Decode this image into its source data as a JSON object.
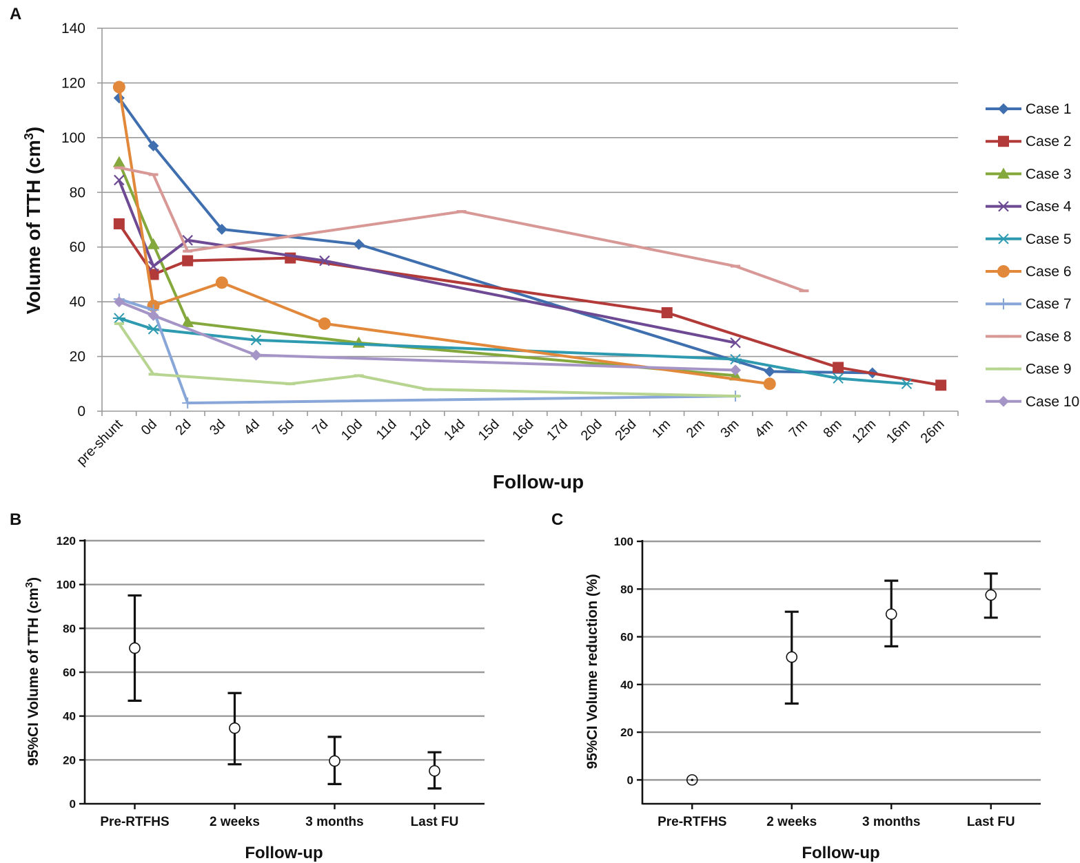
{
  "chart_data": [
    {
      "panel": "A",
      "type": "line",
      "title": "",
      "xlabel": "Follow-up",
      "ylabel_main": "Volume of TTH (cm",
      "ylabel_sup": "3",
      "ylabel_close": ")",
      "ylim": [
        0,
        140
      ],
      "yticks": [
        0,
        20,
        40,
        60,
        80,
        100,
        120,
        140
      ],
      "grid": true,
      "legend_position": "right",
      "categories": [
        "pre-shunt",
        "0d",
        "2d",
        "3d",
        "4d",
        "5d",
        "7d",
        "10d",
        "11d",
        "12d",
        "14d",
        "15d",
        "16d",
        "17d",
        "20d",
        "25d",
        "1m",
        "2m",
        "3m",
        "4m",
        "7m",
        "8m",
        "12m",
        "16m",
        "26m"
      ],
      "series": [
        {
          "name": "Case 1",
          "color": "#3f6faf",
          "marker": "diamond",
          "points": [
            [
              0,
              114.5
            ],
            [
              1,
              97
            ],
            [
              3,
              66.5
            ],
            [
              7,
              61
            ],
            [
              19,
              14.5
            ],
            [
              22,
              14
            ]
          ]
        },
        {
          "name": "Case 2",
          "color": "#b23a38",
          "marker": "square",
          "points": [
            [
              0,
              68.5
            ],
            [
              1,
              50
            ],
            [
              2,
              55
            ],
            [
              5,
              56
            ],
            [
              16,
              36
            ],
            [
              21,
              16
            ],
            [
              24,
              9.5
            ]
          ]
        },
        {
          "name": "Case 3",
          "color": "#84a83c",
          "marker": "triangle",
          "points": [
            [
              0,
              91
            ],
            [
              1,
              61
            ],
            [
              2,
              32.5
            ],
            [
              7,
              25
            ],
            [
              18,
              13
            ]
          ]
        },
        {
          "name": "Case 4",
          "color": "#6d4a93",
          "marker": "x",
          "points": [
            [
              0,
              84.5
            ],
            [
              1,
              53
            ],
            [
              2,
              62.5
            ],
            [
              6,
              55
            ],
            [
              18,
              25
            ]
          ]
        },
        {
          "name": "Case 5",
          "color": "#2d9ab0",
          "marker": "asterisk",
          "points": [
            [
              0,
              34
            ],
            [
              1,
              30
            ],
            [
              4,
              26
            ],
            [
              18,
              19
            ],
            [
              21,
              12
            ],
            [
              23,
              10
            ]
          ]
        },
        {
          "name": "Case 6",
          "color": "#e2883a",
          "marker": "circle",
          "points": [
            [
              0,
              118.5
            ],
            [
              1,
              38.5
            ],
            [
              3,
              47
            ],
            [
              6,
              32
            ],
            [
              19,
              10
            ]
          ]
        },
        {
          "name": "Case 7",
          "color": "#88a6d8",
          "marker": "plus",
          "points": [
            [
              0,
              41
            ],
            [
              1,
              37
            ],
            [
              2,
              3
            ],
            [
              18,
              5.5
            ]
          ]
        },
        {
          "name": "Case 8",
          "color": "#d79896",
          "marker": "dash",
          "points": [
            [
              0,
              89
            ],
            [
              1,
              86.5
            ],
            [
              2,
              58.5
            ],
            [
              10,
              73
            ],
            [
              18,
              53
            ],
            [
              20,
              44
            ]
          ]
        },
        {
          "name": "Case 9",
          "color": "#b7d490",
          "marker": "dash",
          "points": [
            [
              0,
              32
            ],
            [
              1,
              13.5
            ],
            [
              5,
              10
            ],
            [
              7,
              13
            ],
            [
              9,
              8
            ],
            [
              18,
              5.5
            ]
          ]
        },
        {
          "name": "Case 10",
          "color": "#a595c6",
          "marker": "diamond",
          "points": [
            [
              0,
              40
            ],
            [
              1,
              35
            ],
            [
              4,
              20.5
            ],
            [
              18,
              15
            ]
          ]
        }
      ]
    },
    {
      "panel": "B",
      "type": "errorbar",
      "xlabel": "Follow-up",
      "ylabel_main": "95%CI Volume of TTH (cm",
      "ylabel_sup": "3",
      "ylabel_close": ")",
      "ylim": [
        0,
        120
      ],
      "yticks": [
        0,
        20,
        40,
        60,
        80,
        100,
        120
      ],
      "grid": true,
      "categories": [
        "Pre-RTFHS",
        "2 weeks",
        "3 months",
        "Last FU"
      ],
      "means": [
        71,
        34.5,
        19.5,
        15
      ],
      "lower": [
        47,
        18,
        9,
        7
      ],
      "upper": [
        95,
        50.5,
        30.5,
        23.5
      ]
    },
    {
      "panel": "C",
      "type": "errorbar",
      "xlabel": "Follow-up",
      "ylabel_main": "95%CI Volume reduction (%)",
      "ylabel_sup": "",
      "ylabel_close": "",
      "ylim": [
        -10,
        100
      ],
      "yticks": [
        0,
        20,
        40,
        60,
        80,
        100
      ],
      "grid": true,
      "categories": [
        "Pre-RTFHS",
        "2 weeks",
        "3 months",
        "Last FU"
      ],
      "means": [
        0,
        51.5,
        69.5,
        77.5
      ],
      "lower": [
        0,
        32,
        56,
        68
      ],
      "upper": [
        0,
        70.5,
        83.5,
        86.5
      ]
    }
  ]
}
